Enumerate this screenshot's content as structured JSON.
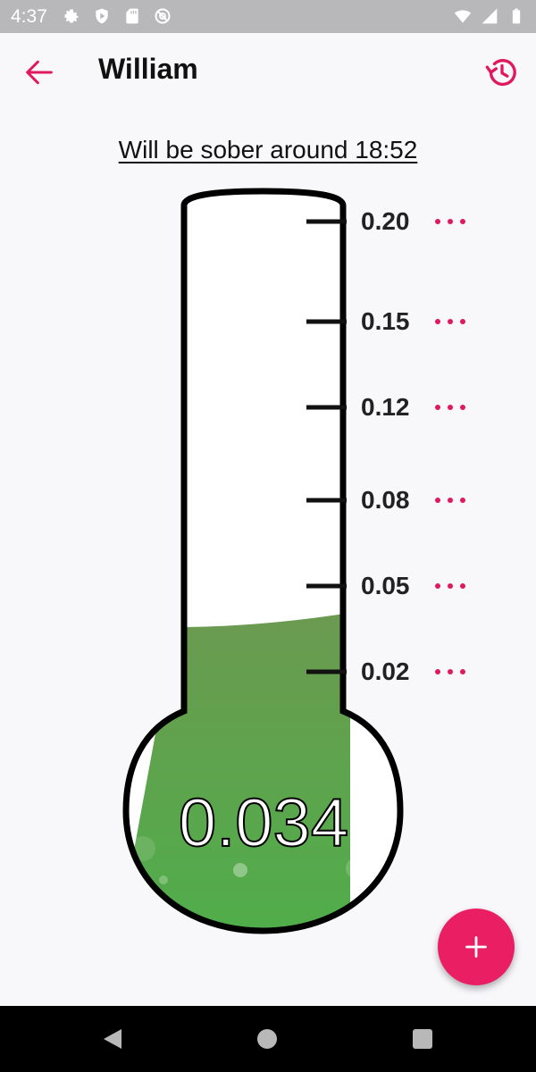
{
  "status_bar": {
    "time": "4:37",
    "left_icons": [
      "settings-icon",
      "play-protect-icon",
      "sd-card-icon",
      "at-sign-icon"
    ],
    "right_icons": [
      "wifi-icon",
      "signal-icon",
      "battery-icon"
    ]
  },
  "app_bar": {
    "title": "William",
    "back_icon": "arrow-back-icon",
    "history_icon": "history-icon"
  },
  "sober_text": "Will be sober around 18:52",
  "thermometer": {
    "current_bac": "0.034",
    "fill_level": 0.034,
    "fill_color": "#5aa350",
    "ticks": [
      {
        "label": "0.20"
      },
      {
        "label": "0.15"
      },
      {
        "label": "0.12"
      },
      {
        "label": "0.08"
      },
      {
        "label": "0.05"
      },
      {
        "label": "0.02"
      }
    ]
  },
  "fab": {
    "icon": "plus-icon"
  },
  "colors": {
    "accent": "#e91e63",
    "background": "#f8f7fa",
    "status_bar": "#b8b8bb",
    "nav_bar": "#000000"
  },
  "nav_bar": {
    "icons": [
      "nav-back-icon",
      "nav-home-icon",
      "nav-recents-icon"
    ]
  }
}
